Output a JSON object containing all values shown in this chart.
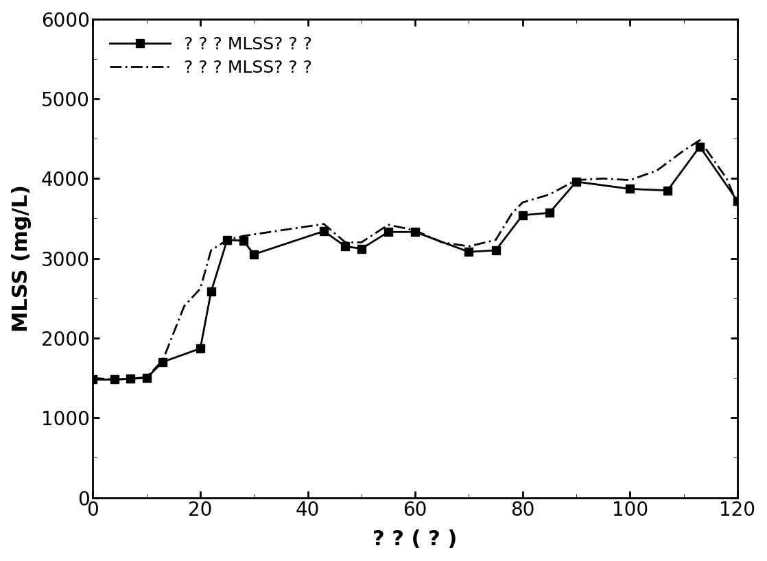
{
  "title": "",
  "xlabel": "? ? ( ? )",
  "ylabel": "MLSS (mg/L)",
  "xlim": [
    0,
    120
  ],
  "ylim": [
    0,
    6000
  ],
  "xticks": [
    0,
    20,
    40,
    60,
    80,
    100,
    120
  ],
  "yticks": [
    0,
    1000,
    2000,
    3000,
    4000,
    5000,
    6000
  ],
  "line1_label": "? ? ? MLSS? ? ?",
  "line2_label": "? ? ? MLSS? ? ?",
  "line1_x": [
    0,
    4,
    7,
    10,
    13,
    20,
    22,
    25,
    28,
    30,
    43,
    47,
    50,
    55,
    60,
    70,
    75,
    80,
    85,
    90,
    100,
    107,
    113,
    120
  ],
  "line1_y": [
    1480,
    1480,
    1490,
    1500,
    1700,
    1870,
    2580,
    3230,
    3220,
    3050,
    3340,
    3150,
    3120,
    3330,
    3330,
    3080,
    3100,
    3540,
    3570,
    3960,
    3870,
    3850,
    4400,
    3720
  ],
  "line2_x": [
    0,
    4,
    7,
    10,
    13,
    17,
    20,
    22,
    25,
    28,
    38,
    43,
    47,
    50,
    55,
    60,
    65,
    70,
    75,
    78,
    80,
    85,
    90,
    95,
    100,
    105,
    110,
    113,
    118,
    120
  ],
  "line2_y": [
    1500,
    1480,
    1490,
    1510,
    1720,
    2400,
    2620,
    3100,
    3230,
    3280,
    3380,
    3430,
    3200,
    3200,
    3420,
    3350,
    3200,
    3150,
    3230,
    3560,
    3700,
    3800,
    3980,
    4000,
    3980,
    4100,
    4350,
    4480,
    4000,
    3680
  ],
  "line1_color": "#000000",
  "line2_color": "#000000",
  "background_color": "#ffffff",
  "fontsize_label": 22,
  "fontsize_tick": 20,
  "fontsize_legend": 18,
  "linewidth": 2.0,
  "markersize": 9
}
